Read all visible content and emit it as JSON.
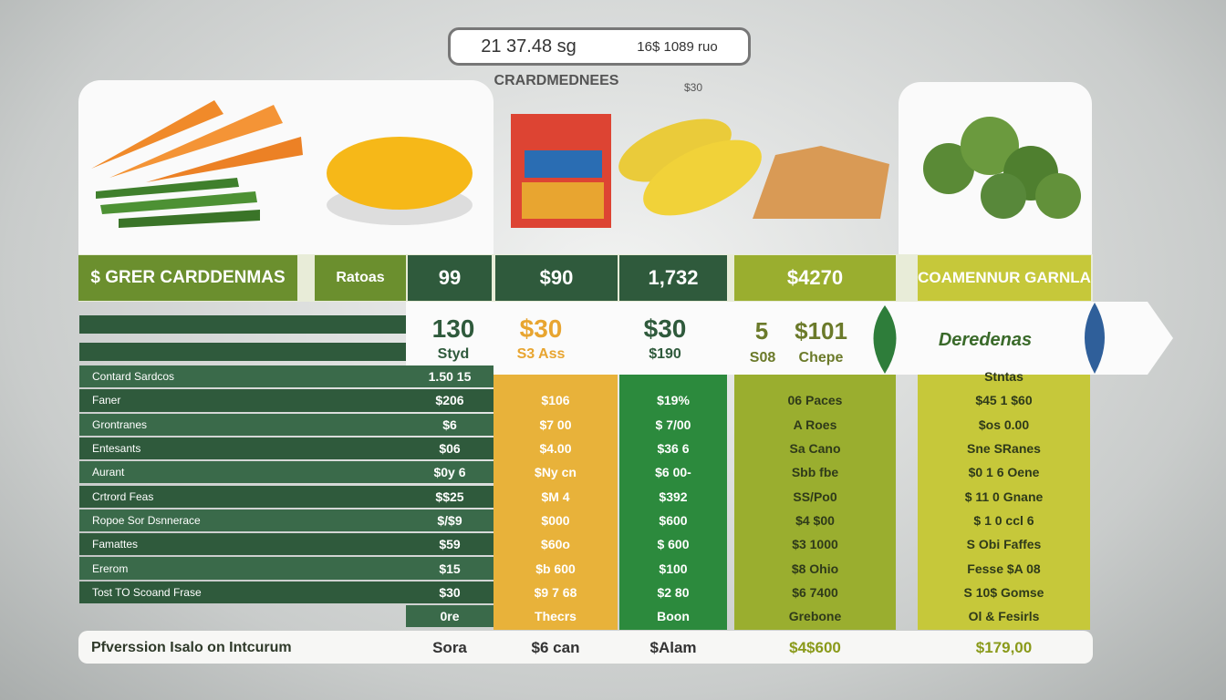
{
  "header": {
    "top_left": "21 37.48 sg",
    "top_right": "16$ 1089 ruo",
    "subtitle": "CRARDMEDNEES",
    "subtitle_price": "$30"
  },
  "title_row": [
    "$ GRER CARDDENMAS",
    "Ratoas",
    "99",
    "$90",
    "1,732",
    "$4270",
    "COAMENNUR GARNLA"
  ],
  "price_row": {
    "c1": [
      "130",
      "Styd"
    ],
    "c2": [
      "$30",
      "S3 Ass"
    ],
    "c3": [
      "$30",
      "$190"
    ],
    "c4": [
      "5",
      "$101",
      "S08",
      "Chepe"
    ],
    "brand": "Deredenas"
  },
  "table": {
    "rows": [
      [
        "Contard Sardcos",
        "1.50 15",
        null,
        null,
        null,
        "Stntas"
      ],
      [
        "Faner",
        "$206",
        "$106",
        "$19%",
        "06 Paces",
        "$45 1 $60"
      ],
      [
        "Grontranes",
        "$6",
        "$7 00",
        "$ 7/00",
        "A Roes",
        "$os 0.00"
      ],
      [
        "Entesants",
        "$06",
        "$4.00",
        "$36 6",
        "Sa Cano",
        "Sne SRanes"
      ],
      [
        "Aurant",
        "$0y 6",
        "$Ny cn",
        "$6 00-",
        "Sbb fbe",
        "$0 1 6 Oene"
      ],
      [
        "Crtrord Feas",
        "$$25",
        "$M 4",
        "$392",
        "SS/Po0",
        "$ 11 0 Gnane"
      ],
      [
        "Ropoe Sor Dsnnerace",
        "$/$9",
        "$000",
        "$600",
        "$4 $00",
        "$ 1 0 ccl 6"
      ],
      [
        "Famattes",
        "$59",
        "$60o",
        "$ 600",
        "$3 1000",
        "S Obi Faffes"
      ],
      [
        "Ererom",
        "$15",
        "$b 600",
        "$100",
        "$8 Ohio",
        "Fesse $A 08"
      ],
      [
        "Tost   TO Scoand Frase",
        "$30",
        "$9 7 68",
        "$2 80",
        "$6 7400",
        "S 10$ Gomse"
      ],
      [
        null,
        "0re",
        "Thecrs",
        "Boon",
        "Grebone",
        "Ol & Fesirls"
      ]
    ]
  },
  "footer": [
    "Pfverssion Isalo on Intcurum",
    "Sora",
    "$6 can",
    "$Alam",
    "$4$600",
    "$179,00"
  ]
}
